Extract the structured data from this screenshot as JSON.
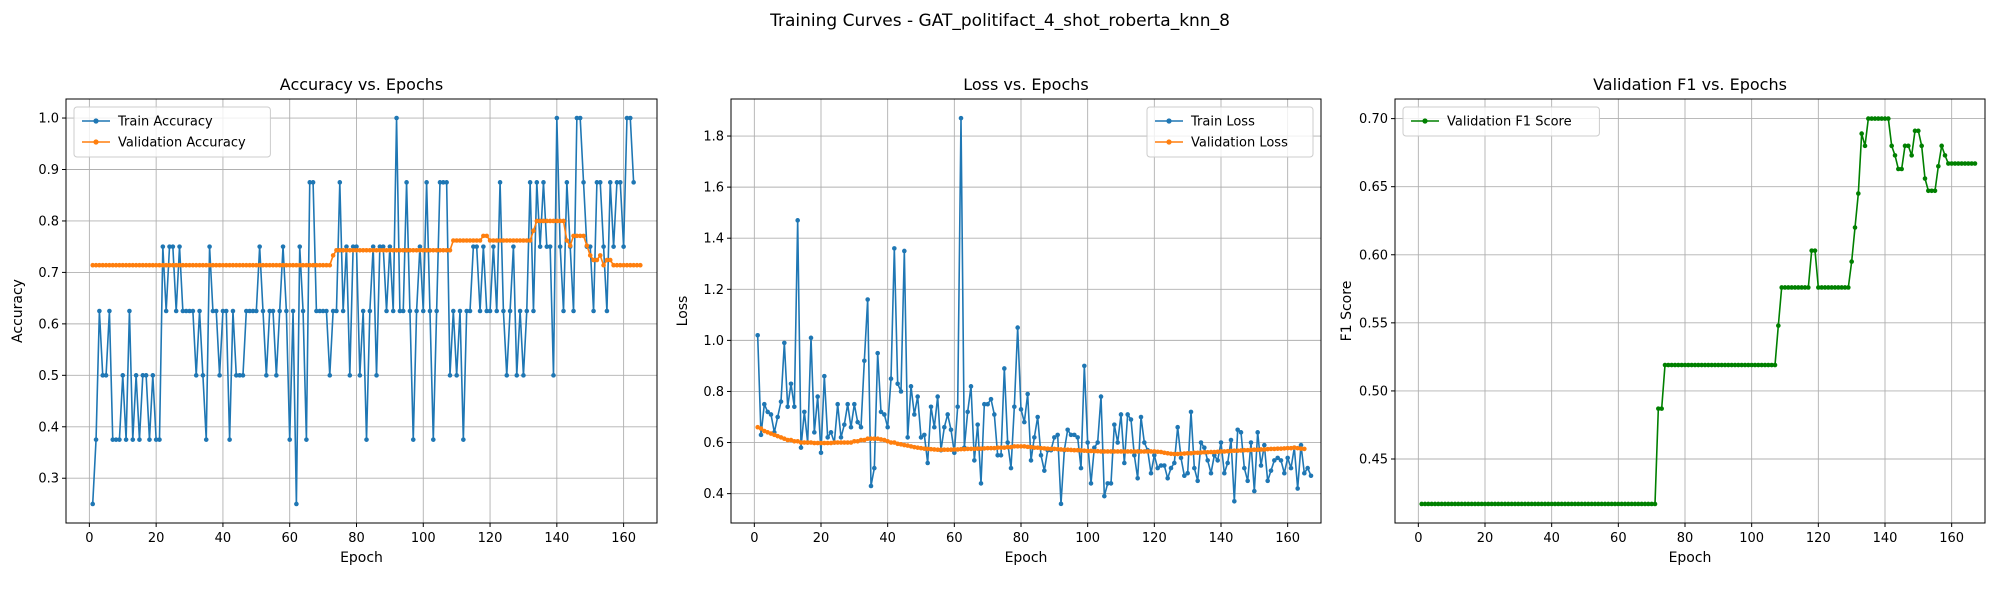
{
  "suptitle": "Training Curves - GAT_politifact_4_shot_roberta_knn_8",
  "colors": {
    "train": "#1f77b4",
    "val": "#ff7f0e",
    "f1": "#008000",
    "grid": "#b0b0b0"
  },
  "chart_data": [
    {
      "type": "line",
      "title": "Accuracy vs. Epochs",
      "xlabel": "Epoch",
      "ylabel": "Accuracy",
      "xlim": [
        -7,
        170
      ],
      "ylim": [
        0.213,
        1.037
      ],
      "xticks": [
        0,
        20,
        40,
        60,
        80,
        100,
        120,
        140,
        160
      ],
      "yticks": [
        0.3,
        0.4,
        0.5,
        0.6,
        0.7,
        0.8,
        0.9,
        1.0
      ],
      "ytick_labels": [
        "0.3",
        "0.4",
        "0.5",
        "0.6",
        "0.7",
        "0.8",
        "0.9",
        "1.0"
      ],
      "grid": true,
      "legend_position": "upper left",
      "series": [
        {
          "name": "Train Accuracy",
          "color_key": "train",
          "values": [
            0.25,
            0.375,
            0.625,
            0.5,
            0.5,
            0.625,
            0.375,
            0.375,
            0.375,
            0.5,
            0.375,
            0.625,
            0.375,
            0.5,
            0.375,
            0.5,
            0.5,
            0.375,
            0.5,
            0.375,
            0.375,
            0.75,
            0.625,
            0.75,
            0.75,
            0.625,
            0.75,
            0.625,
            0.625,
            0.625,
            0.625,
            0.5,
            0.625,
            0.5,
            0.375,
            0.75,
            0.625,
            0.625,
            0.5,
            0.625,
            0.625,
            0.375,
            0.625,
            0.5,
            0.5,
            0.5,
            0.625,
            0.625,
            0.625,
            0.625,
            0.75,
            0.625,
            0.5,
            0.625,
            0.625,
            0.5,
            0.625,
            0.75,
            0.625,
            0.375,
            0.625,
            0.25,
            0.75,
            0.625,
            0.375,
            0.875,
            0.875,
            0.625,
            0.625,
            0.625,
            0.625,
            0.5,
            0.625,
            0.625,
            0.875,
            0.625,
            0.75,
            0.5,
            0.75,
            0.75,
            0.5,
            0.625,
            0.375,
            0.625,
            0.75,
            0.5,
            0.75,
            0.75,
            0.625,
            0.75,
            0.625,
            1.0,
            0.625,
            0.625,
            0.875,
            0.625,
            0.375,
            0.625,
            0.75,
            0.625,
            0.875,
            0.625,
            0.375,
            0.625,
            0.875,
            0.875,
            0.875,
            0.5,
            0.625,
            0.5,
            0.625,
            0.375,
            0.625,
            0.625,
            0.75,
            0.75,
            0.625,
            0.75,
            0.625,
            0.625,
            0.75,
            0.625,
            0.875,
            0.625,
            0.5,
            0.625,
            0.75,
            0.5,
            0.625,
            0.5,
            0.625,
            0.875,
            0.625,
            0.875,
            0.75,
            0.875,
            0.75,
            0.75,
            0.5,
            1.0,
            0.75,
            0.625,
            0.875,
            0.75,
            0.625,
            1.0,
            1.0,
            0.875,
            0.75,
            0.75,
            0.625,
            0.875,
            0.875,
            0.75,
            0.625,
            0.875,
            0.75,
            0.875,
            0.875,
            0.75,
            1.0,
            1.0,
            0.875
          ]
        },
        {
          "name": "Validation Accuracy",
          "color_key": "val",
          "values": [
            0.714,
            0.714,
            0.714,
            0.714,
            0.714,
            0.714,
            0.714,
            0.714,
            0.714,
            0.714,
            0.714,
            0.714,
            0.714,
            0.714,
            0.714,
            0.714,
            0.714,
            0.714,
            0.714,
            0.714,
            0.714,
            0.714,
            0.714,
            0.714,
            0.714,
            0.714,
            0.714,
            0.714,
            0.714,
            0.714,
            0.714,
            0.714,
            0.714,
            0.714,
            0.714,
            0.714,
            0.714,
            0.714,
            0.714,
            0.714,
            0.714,
            0.714,
            0.714,
            0.714,
            0.714,
            0.714,
            0.714,
            0.714,
            0.714,
            0.714,
            0.714,
            0.714,
            0.714,
            0.714,
            0.714,
            0.714,
            0.714,
            0.714,
            0.714,
            0.714,
            0.714,
            0.714,
            0.714,
            0.714,
            0.714,
            0.714,
            0.714,
            0.714,
            0.714,
            0.714,
            0.714,
            0.714,
            0.733,
            0.743,
            0.743,
            0.743,
            0.743,
            0.743,
            0.743,
            0.743,
            0.743,
            0.743,
            0.743,
            0.743,
            0.743,
            0.743,
            0.743,
            0.743,
            0.743,
            0.743,
            0.743,
            0.743,
            0.743,
            0.743,
            0.743,
            0.743,
            0.743,
            0.743,
            0.743,
            0.743,
            0.743,
            0.743,
            0.743,
            0.743,
            0.743,
            0.743,
            0.743,
            0.743,
            0.762,
            0.762,
            0.762,
            0.762,
            0.762,
            0.762,
            0.762,
            0.762,
            0.762,
            0.771,
            0.771,
            0.762,
            0.762,
            0.762,
            0.762,
            0.762,
            0.762,
            0.762,
            0.762,
            0.762,
            0.762,
            0.762,
            0.762,
            0.762,
            0.781,
            0.8,
            0.8,
            0.8,
            0.8,
            0.8,
            0.8,
            0.8,
            0.8,
            0.8,
            0.762,
            0.752,
            0.771,
            0.771,
            0.771,
            0.771,
            0.752,
            0.733,
            0.724,
            0.724,
            0.733,
            0.714,
            0.724,
            0.724,
            0.714,
            0.714,
            0.714,
            0.714,
            0.714,
            0.714,
            0.714,
            0.714,
            0.714
          ]
        }
      ]
    },
    {
      "type": "line",
      "title": "Loss vs. Epochs",
      "xlabel": "Epoch",
      "ylabel": "Loss",
      "xlim": [
        -7,
        170
      ],
      "ylim": [
        0.285,
        1.945
      ],
      "xticks": [
        0,
        20,
        40,
        60,
        80,
        100,
        120,
        140,
        160
      ],
      "yticks": [
        0.4,
        0.6,
        0.8,
        1.0,
        1.2,
        1.4,
        1.6,
        1.8
      ],
      "ytick_labels": [
        "0.4",
        "0.6",
        "0.8",
        "1.0",
        "1.2",
        "1.4",
        "1.6",
        "1.8"
      ],
      "grid": true,
      "legend_position": "upper right",
      "series": [
        {
          "name": "Train Loss",
          "color_key": "train",
          "values": [
            1.02,
            0.63,
            0.75,
            0.72,
            0.71,
            0.64,
            0.7,
            0.76,
            0.99,
            0.74,
            0.83,
            0.74,
            1.47,
            0.58,
            0.72,
            0.6,
            1.01,
            0.64,
            0.78,
            0.56,
            0.86,
            0.62,
            0.64,
            0.6,
            0.75,
            0.62,
            0.67,
            0.75,
            0.66,
            0.75,
            0.68,
            0.66,
            0.92,
            1.16,
            0.43,
            0.5,
            0.95,
            0.72,
            0.71,
            0.66,
            0.85,
            1.36,
            0.83,
            0.8,
            1.35,
            0.62,
            0.82,
            0.71,
            0.78,
            0.62,
            0.63,
            0.52,
            0.74,
            0.66,
            0.78,
            0.57,
            0.66,
            0.71,
            0.65,
            0.56,
            0.74,
            1.87,
            0.58,
            0.72,
            0.82,
            0.53,
            0.67,
            0.44,
            0.75,
            0.75,
            0.77,
            0.71,
            0.55,
            0.55,
            0.89,
            0.6,
            0.5,
            0.74,
            1.05,
            0.73,
            0.68,
            0.79,
            0.53,
            0.62,
            0.7,
            0.55,
            0.49,
            0.57,
            0.57,
            0.62,
            0.63,
            0.36,
            0.57,
            0.65,
            0.63,
            0.63,
            0.62,
            0.5,
            0.9,
            0.6,
            0.44,
            0.58,
            0.6,
            0.78,
            0.39,
            0.44,
            0.44,
            0.67,
            0.6,
            0.71,
            0.52,
            0.71,
            0.69,
            0.55,
            0.46,
            0.7,
            0.6,
            0.57,
            0.48,
            0.55,
            0.5,
            0.51,
            0.51,
            0.46,
            0.5,
            0.52,
            0.66,
            0.54,
            0.47,
            0.48,
            0.72,
            0.5,
            0.45,
            0.6,
            0.58,
            0.53,
            0.48,
            0.55,
            0.53,
            0.6,
            0.48,
            0.52,
            0.61,
            0.37,
            0.65,
            0.64,
            0.5,
            0.45,
            0.6,
            0.41,
            0.64,
            0.51,
            0.59,
            0.45,
            0.49,
            0.53,
            0.54,
            0.53,
            0.48,
            0.54,
            0.5,
            0.58,
            0.42,
            0.59,
            0.48,
            0.5,
            0.47
          ]
        },
        {
          "name": "Validation Loss",
          "color_key": "val",
          "values": [
            0.66,
            0.655,
            0.645,
            0.64,
            0.635,
            0.63,
            0.625,
            0.62,
            0.615,
            0.61,
            0.61,
            0.605,
            0.605,
            0.6,
            0.6,
            0.6,
            0.6,
            0.598,
            0.598,
            0.598,
            0.598,
            0.598,
            0.598,
            0.6,
            0.6,
            0.6,
            0.6,
            0.6,
            0.6,
            0.605,
            0.605,
            0.61,
            0.61,
            0.615,
            0.615,
            0.615,
            0.615,
            0.612,
            0.61,
            0.605,
            0.6,
            0.6,
            0.595,
            0.593,
            0.59,
            0.588,
            0.585,
            0.582,
            0.58,
            0.578,
            0.576,
            0.575,
            0.574,
            0.573,
            0.572,
            0.572,
            0.572,
            0.572,
            0.572,
            0.573,
            0.573,
            0.574,
            0.574,
            0.575,
            0.575,
            0.575,
            0.576,
            0.576,
            0.577,
            0.578,
            0.578,
            0.578,
            0.58,
            0.58,
            0.58,
            0.582,
            0.582,
            0.585,
            0.585,
            0.585,
            0.585,
            0.583,
            0.582,
            0.58,
            0.58,
            0.578,
            0.577,
            0.576,
            0.575,
            0.575,
            0.574,
            0.573,
            0.572,
            0.572,
            0.571,
            0.57,
            0.57,
            0.569,
            0.568,
            0.567,
            0.567,
            0.566,
            0.566,
            0.565,
            0.565,
            0.565,
            0.565,
            0.565,
            0.565,
            0.565,
            0.565,
            0.565,
            0.565,
            0.565,
            0.565,
            0.565,
            0.565,
            0.565,
            0.565,
            0.565,
            0.564,
            0.563,
            0.56,
            0.558,
            0.556,
            0.555,
            0.555,
            0.556,
            0.557,
            0.558,
            0.558,
            0.56,
            0.56,
            0.561,
            0.562,
            0.562,
            0.563,
            0.563,
            0.564,
            0.565,
            0.565,
            0.566,
            0.567,
            0.568,
            0.568,
            0.569,
            0.57,
            0.57,
            0.571,
            0.572,
            0.572,
            0.573,
            0.573,
            0.574,
            0.575,
            0.575,
            0.576,
            0.576,
            0.577,
            0.578,
            0.578,
            0.58,
            0.578,
            0.576,
            0.575
          ]
        }
      ]
    },
    {
      "type": "line",
      "title": "Validation F1 vs. Epochs",
      "xlabel": "Epoch",
      "ylabel": "F1 Score",
      "xlim": [
        -7,
        170
      ],
      "ylim": [
        0.403,
        0.7144
      ],
      "xticks": [
        0,
        20,
        40,
        60,
        80,
        100,
        120,
        140,
        160
      ],
      "yticks": [
        0.45,
        0.5,
        0.55,
        0.6,
        0.65,
        0.7
      ],
      "ytick_labels": [
        "0.45",
        "0.50",
        "0.55",
        "0.60",
        "0.65",
        "0.70"
      ],
      "grid": true,
      "legend_position": "upper left",
      "series": [
        {
          "name": "Validation F1 Score",
          "color_key": "f1",
          "values": [
            0.417,
            0.417,
            0.417,
            0.417,
            0.417,
            0.417,
            0.417,
            0.417,
            0.417,
            0.417,
            0.417,
            0.417,
            0.417,
            0.417,
            0.417,
            0.417,
            0.417,
            0.417,
            0.417,
            0.417,
            0.417,
            0.417,
            0.417,
            0.417,
            0.417,
            0.417,
            0.417,
            0.417,
            0.417,
            0.417,
            0.417,
            0.417,
            0.417,
            0.417,
            0.417,
            0.417,
            0.417,
            0.417,
            0.417,
            0.417,
            0.417,
            0.417,
            0.417,
            0.417,
            0.417,
            0.417,
            0.417,
            0.417,
            0.417,
            0.417,
            0.417,
            0.417,
            0.417,
            0.417,
            0.417,
            0.417,
            0.417,
            0.417,
            0.417,
            0.417,
            0.417,
            0.417,
            0.417,
            0.417,
            0.417,
            0.417,
            0.417,
            0.417,
            0.417,
            0.417,
            0.417,
            0.487,
            0.487,
            0.519,
            0.519,
            0.519,
            0.519,
            0.519,
            0.519,
            0.519,
            0.519,
            0.519,
            0.519,
            0.519,
            0.519,
            0.519,
            0.519,
            0.519,
            0.519,
            0.519,
            0.519,
            0.519,
            0.519,
            0.519,
            0.519,
            0.519,
            0.519,
            0.519,
            0.519,
            0.519,
            0.519,
            0.519,
            0.519,
            0.519,
            0.519,
            0.519,
            0.519,
            0.548,
            0.576,
            0.576,
            0.576,
            0.576,
            0.576,
            0.576,
            0.576,
            0.576,
            0.576,
            0.603,
            0.603,
            0.576,
            0.576,
            0.576,
            0.576,
            0.576,
            0.576,
            0.576,
            0.576,
            0.576,
            0.576,
            0.595,
            0.62,
            0.645,
            0.689,
            0.68,
            0.7,
            0.7,
            0.7,
            0.7,
            0.7,
            0.7,
            0.7,
            0.68,
            0.673,
            0.663,
            0.663,
            0.68,
            0.68,
            0.673,
            0.691,
            0.691,
            0.68,
            0.656,
            0.647,
            0.647,
            0.647,
            0.665,
            0.68,
            0.673,
            0.667,
            0.667,
            0.667,
            0.667,
            0.667,
            0.667,
            0.667,
            0.667,
            0.667
          ]
        }
      ]
    }
  ]
}
